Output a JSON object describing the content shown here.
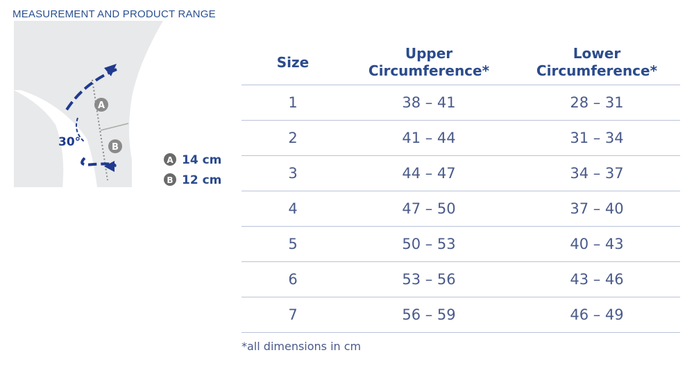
{
  "header": {
    "title": "MEASUREMENT AND PRODUCT RANGE"
  },
  "diagram": {
    "markers": [
      "A",
      "B"
    ],
    "angle": "30°",
    "legend": [
      {
        "marker": "A",
        "value": "14 cm"
      },
      {
        "marker": "B",
        "value": "12 cm"
      }
    ]
  },
  "table": {
    "columns": [
      "Size",
      "Upper Circumference*",
      "Lower Circumference*"
    ],
    "rows": [
      [
        "1",
        "38 – 41",
        "28 – 31"
      ],
      [
        "2",
        "41 – 44",
        "31 – 34"
      ],
      [
        "3",
        "44 – 47",
        "34 – 37"
      ],
      [
        "4",
        "47 – 50",
        "37 – 40"
      ],
      [
        "5",
        "50 – 53",
        "40 – 43"
      ],
      [
        "6",
        "53 – 56",
        "43 – 46"
      ],
      [
        "7",
        "56 – 59",
        "46 – 49"
      ]
    ],
    "footnote": "*all dimensions in cm"
  }
}
